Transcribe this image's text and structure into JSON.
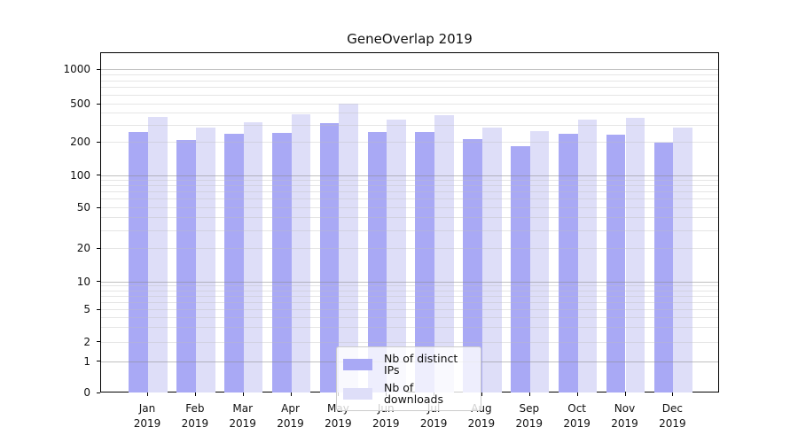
{
  "title": "GeneOverlap 2019",
  "chart_data": {
    "type": "bar",
    "title": "GeneOverlap 2019",
    "categories": [
      "Jan 2019",
      "Feb 2019",
      "Mar 2019",
      "Apr 2019",
      "May 2019",
      "Jun 2019",
      "Jul 2019",
      "Aug 2019",
      "Sep 2019",
      "Oct 2019",
      "Nov 2019",
      "Dec 2019"
    ],
    "series": [
      {
        "name": "Nb of distinct IPs",
        "color": "#a9a9f5",
        "values": [
          260,
          215,
          245,
          255,
          320,
          260,
          260,
          220,
          185,
          245,
          240,
          200
        ]
      },
      {
        "name": "Nb of downloads",
        "color": "#dedef8",
        "values": [
          370,
          285,
          325,
          395,
          510,
          350,
          390,
          285,
          265,
          350,
          360,
          290
        ]
      }
    ],
    "xlabel": "",
    "ylabel": "",
    "yscale": "symlog",
    "yticks": [
      0,
      1,
      2,
      5,
      10,
      20,
      50,
      100,
      200,
      500,
      1000
    ],
    "ylim": [
      0,
      1430
    ],
    "grid": "horizontal major and minor",
    "legend_position": "lower center inside plot"
  },
  "colors": {
    "bar_distinct_ips": "#a9a9f5",
    "bar_downloads": "#dedef8",
    "major_grid": "#8c8c8c",
    "minor_grid": "#bebebe",
    "spine": "#000000",
    "background": "#ffffff"
  }
}
